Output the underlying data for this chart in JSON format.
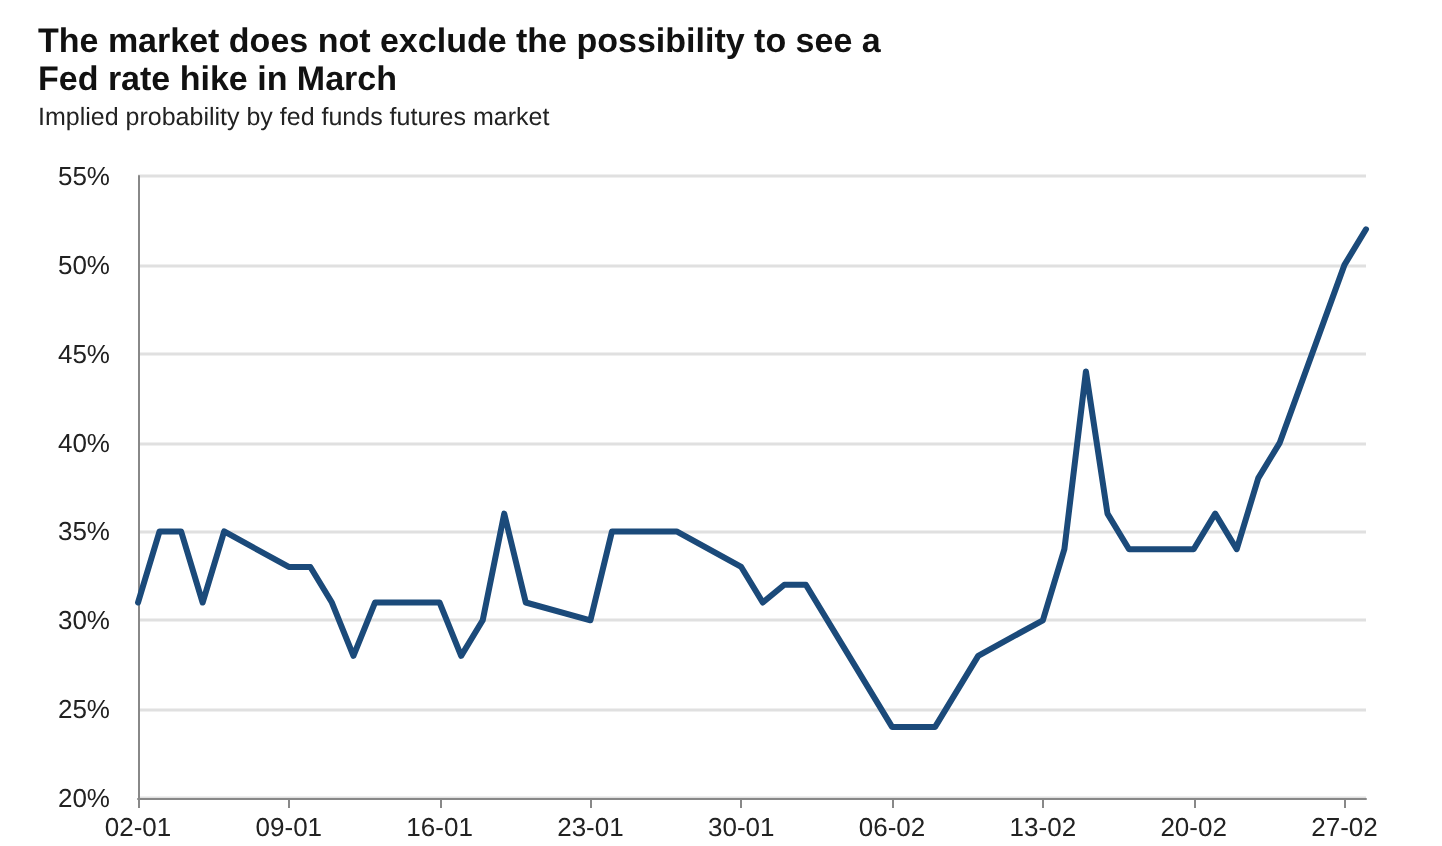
{
  "chart_data": {
    "type": "line",
    "title": "The market does not exclude the possibility to see a Fed rate hike in March",
    "subtitle": "Implied probability by fed funds futures market",
    "x": [
      "--01-02",
      "--01-03",
      "--01-04",
      "--01-05",
      "--01-06",
      "--01-09",
      "--01-10",
      "--01-11",
      "--01-12",
      "--01-13",
      "--01-16",
      "--01-17",
      "--01-18",
      "--01-19",
      "--01-20",
      "--01-23",
      "--01-24",
      "--01-27",
      "--01-30",
      "--01-31",
      "--02-01",
      "--02-02",
      "--02-06",
      "--02-08",
      "--02-10",
      "--02-13",
      "--02-14",
      "--02-15",
      "--02-16",
      "--02-17",
      "--02-20",
      "--02-21",
      "--02-22",
      "--02-23",
      "--02-24",
      "--02-27",
      "--02-28"
    ],
    "series": [
      {
        "color": "#1b4a7a",
        "values": [
          31,
          35,
          35,
          31,
          35,
          33,
          33,
          31,
          28,
          31,
          31,
          28,
          30,
          36,
          31,
          30,
          35,
          35,
          33,
          31,
          32,
          32,
          24,
          24,
          28,
          30,
          34,
          44,
          36,
          34,
          34,
          36,
          34,
          38,
          40,
          50,
          52
        ]
      }
    ],
    "xlim": [
      "--01-02",
      "--02-28"
    ],
    "xticks": [
      {
        "value": "--01-02",
        "label": "02-01"
      },
      {
        "value": "--01-09",
        "label": "09-01"
      },
      {
        "value": "--01-16",
        "label": "16-01"
      },
      {
        "value": "--01-23",
        "label": "23-01"
      },
      {
        "value": "--01-30",
        "label": "30-01"
      },
      {
        "value": "--02-06",
        "label": "06-02"
      },
      {
        "value": "--02-13",
        "label": "13-02"
      },
      {
        "value": "--02-20",
        "label": "20-02"
      },
      {
        "value": "--02-27",
        "label": "27-02"
      }
    ],
    "ylim": [
      20,
      55
    ],
    "yticks": [
      {
        "value": 20,
        "label": "20%"
      },
      {
        "value": 25,
        "label": "25%"
      },
      {
        "value": 30,
        "label": "30%"
      },
      {
        "value": 35,
        "label": "35%"
      },
      {
        "value": 40,
        "label": "40%"
      },
      {
        "value": 45,
        "label": "45%"
      },
      {
        "value": 50,
        "label": "50%"
      },
      {
        "value": 55,
        "label": "55%"
      }
    ],
    "grid": "y",
    "marker": "none",
    "line_style": "solid"
  }
}
